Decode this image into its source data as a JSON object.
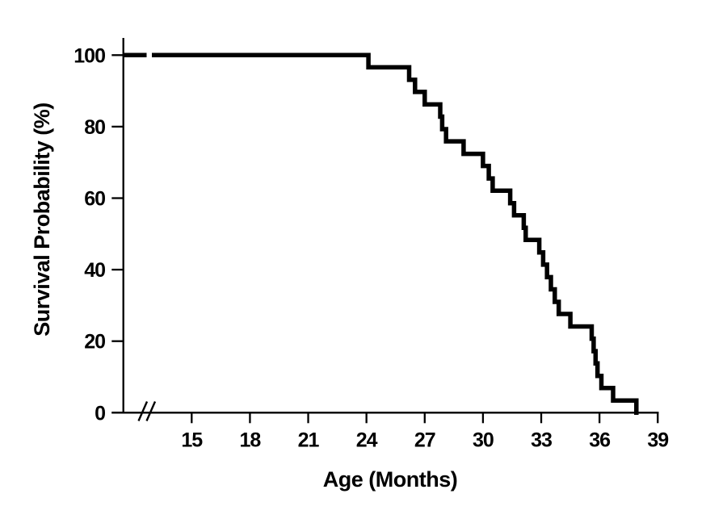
{
  "figure": {
    "background_color": "#ffffff",
    "foreground_color": "#000000"
  },
  "chart_data": {
    "type": "line",
    "subtype": "kaplan_meier_step_survival",
    "title": "",
    "xlabel": "Age (Months)",
    "ylabel": "Survival Probability (%)",
    "x_tick_labels": [
      "15",
      "18",
      "21",
      "24",
      "27",
      "30",
      "33",
      "36",
      "39"
    ],
    "x_tick_values": [
      15,
      18,
      21,
      24,
      27,
      30,
      33,
      36,
      39
    ],
    "y_tick_labels": [
      "0",
      "20",
      "40",
      "60",
      "80",
      "100"
    ],
    "y_tick_values": [
      0,
      20,
      40,
      60,
      80,
      100
    ],
    "xlim_drawn_months": [
      11.5,
      39.1
    ],
    "ylim": [
      0,
      100
    ],
    "grid": false,
    "legend": null,
    "line_color": "#000000",
    "background": "#ffffff",
    "x_axis_break": {
      "present": true,
      "between_months": [
        12.3,
        13.4
      ]
    },
    "curve_start": {
      "month": 11.5,
      "survival_pct": 100
    },
    "steps": [
      [
        24.1,
        96.6
      ],
      [
        26.2,
        93.1
      ],
      [
        26.5,
        89.7
      ],
      [
        27.0,
        86.2
      ],
      [
        27.8,
        82.8
      ],
      [
        27.9,
        79.3
      ],
      [
        28.1,
        75.9
      ],
      [
        29.0,
        72.4
      ],
      [
        30.0,
        69.0
      ],
      [
        30.3,
        65.5
      ],
      [
        30.5,
        62.1
      ],
      [
        31.4,
        58.6
      ],
      [
        31.6,
        55.2
      ],
      [
        32.1,
        51.7
      ],
      [
        32.2,
        48.3
      ],
      [
        32.9,
        44.8
      ],
      [
        33.1,
        41.4
      ],
      [
        33.3,
        37.9
      ],
      [
        33.5,
        34.5
      ],
      [
        33.7,
        31.0
      ],
      [
        33.9,
        27.6
      ],
      [
        34.5,
        24.1
      ],
      [
        35.6,
        20.7
      ],
      [
        35.7,
        17.2
      ],
      [
        35.8,
        13.8
      ],
      [
        35.9,
        10.3
      ],
      [
        36.1,
        6.9
      ],
      [
        36.7,
        3.4
      ],
      [
        37.9,
        0.0
      ]
    ]
  }
}
